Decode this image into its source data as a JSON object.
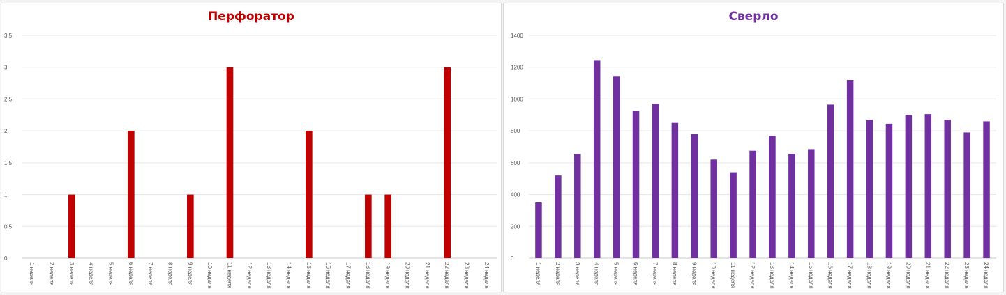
{
  "chart_data": [
    {
      "type": "bar",
      "title": "Перфоратор",
      "title_color": "#c00000",
      "bar_color": "#c00000",
      "categories": [
        "1 неделя",
        "2 неделя",
        "3 неделя",
        "4 неделя",
        "5 неделя",
        "6 неделя",
        "7 неделя",
        "8 неделя",
        "9 неделя",
        "10 неделя",
        "11 неделя",
        "12 неделя",
        "13 неделя",
        "14 неделя",
        "15 неделя",
        "16 неделя",
        "17 неделя",
        "18 неделя",
        "19 неделя",
        "20 неделя",
        "21 неделя",
        "22 неделя",
        "23 неделя",
        "24 неделя"
      ],
      "values": [
        0,
        0,
        1,
        0,
        0,
        2,
        0,
        0,
        1,
        0,
        3,
        0,
        0,
        0,
        2,
        0,
        0,
        1,
        1,
        0,
        0,
        3,
        0,
        0
      ],
      "ylim": [
        0,
        3.5
      ],
      "yticks": [
        "0",
        "0,5",
        "1",
        "1,5",
        "2",
        "2,5",
        "3",
        "3,5"
      ],
      "grid": true
    },
    {
      "type": "bar",
      "title": "Сверло",
      "title_color": "#7030a0",
      "bar_color": "#7030a0",
      "categories": [
        "1 неделя",
        "2 неделя",
        "3 неделя",
        "4 неделя",
        "5 неделя",
        "6 неделя",
        "7 неделя",
        "8 неделя",
        "9 неделя",
        "10 неделя",
        "11 неделя",
        "12 неделя",
        "13 неделя",
        "14 неделя",
        "15 неделя",
        "16 неделя",
        "17 неделя",
        "18 неделя",
        "19 неделя",
        "20 неделя",
        "21 неделя",
        "22 неделя",
        "23 неделя",
        "24 неделя"
      ],
      "values": [
        350,
        520,
        655,
        1245,
        1145,
        925,
        970,
        850,
        780,
        620,
        540,
        675,
        770,
        655,
        685,
        965,
        1120,
        870,
        845,
        900,
        905,
        870,
        790,
        860
      ],
      "ylim": [
        0,
        1400
      ],
      "yticks": [
        "0",
        "200",
        "400",
        "600",
        "800",
        "1000",
        "1200",
        "1400"
      ],
      "grid": true
    }
  ]
}
